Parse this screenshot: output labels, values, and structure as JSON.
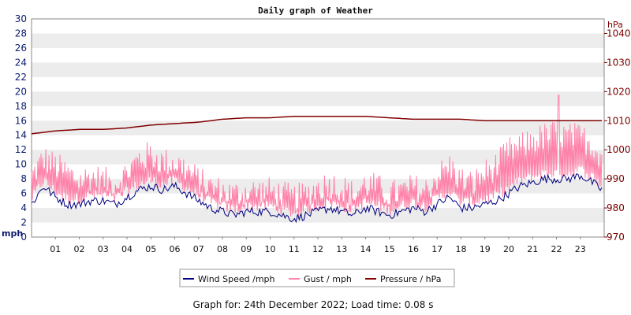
{
  "chart_data": {
    "type": "line",
    "title": "Daily graph of Weather",
    "ylabel_left": "mph",
    "ylabel_right": "hPa",
    "ylim_left": [
      0,
      30
    ],
    "ylim_right": [
      970,
      1045
    ],
    "y_ticks_left": [
      0,
      2,
      4,
      6,
      8,
      10,
      12,
      14,
      16,
      18,
      20,
      22,
      24,
      26,
      28,
      30
    ],
    "y_ticks_right": [
      970,
      980,
      990,
      1000,
      1010,
      1020,
      1030,
      1040
    ],
    "x_ticks": [
      "01",
      "02",
      "03",
      "04",
      "05",
      "06",
      "07",
      "08",
      "09",
      "10",
      "11",
      "12",
      "13",
      "14",
      "15",
      "16",
      "17",
      "18",
      "19",
      "20",
      "21",
      "22",
      "23"
    ],
    "xlim_hours": [
      0,
      24
    ],
    "grid": "horizontal bands",
    "legend_position": "bottom-center",
    "series": [
      {
        "name": "Wind Speed /mph",
        "axis": "left",
        "color": "#000080",
        "x_hours": [
          0,
          0.5,
          1,
          1.5,
          2,
          2.5,
          3,
          3.5,
          4,
          4.5,
          5,
          5.5,
          6,
          6.5,
          7,
          7.5,
          8,
          8.5,
          9,
          9.5,
          10,
          10.5,
          11,
          11.5,
          12,
          12.5,
          13,
          13.5,
          14,
          14.5,
          15,
          15.5,
          16,
          16.5,
          17,
          17.5,
          18,
          18.5,
          19,
          19.5,
          20,
          20.5,
          21,
          21.5,
          22,
          22.5,
          23,
          23.5,
          23.9
        ],
        "values": [
          4.5,
          7,
          5.5,
          4.5,
          4.5,
          5,
          5,
          4.5,
          5.5,
          6.5,
          7,
          6.5,
          7,
          6,
          5,
          4,
          3.5,
          3,
          3.5,
          3.5,
          3.5,
          3,
          2.5,
          3,
          3.5,
          4,
          3.5,
          3,
          4,
          3.5,
          3,
          3.5,
          4,
          3.5,
          4.5,
          5.5,
          4,
          4,
          4.5,
          5,
          6,
          7,
          7.5,
          8,
          8,
          8,
          8.5,
          7.5,
          6.5
        ]
      },
      {
        "name": "Gust / mph",
        "axis": "left",
        "color": "#ff80a8",
        "x_hours": [
          0,
          0.5,
          1,
          1.5,
          2,
          2.5,
          3,
          3.5,
          4,
          4.5,
          5,
          5.5,
          6,
          6.5,
          7,
          7.5,
          8,
          8.5,
          9,
          9.5,
          10,
          10.5,
          11,
          11.5,
          12,
          12.5,
          13,
          13.5,
          14,
          14.5,
          15,
          15.5,
          16,
          16.5,
          17,
          17.5,
          18,
          18.5,
          19,
          19.5,
          20,
          20.5,
          21,
          21.5,
          22,
          22.5,
          23,
          23.5,
          23.9
        ],
        "values": [
          7.5,
          10,
          9,
          8,
          7,
          7.5,
          7,
          6.5,
          8,
          10,
          10.5,
          9.5,
          9.5,
          8.5,
          7,
          6,
          5.5,
          5,
          5.5,
          5.5,
          5.5,
          5,
          4.5,
          5,
          6,
          6.5,
          6,
          5,
          6.5,
          6,
          5,
          5.5,
          6,
          5.5,
          7.5,
          9,
          7,
          6.5,
          8,
          9,
          11,
          11.5,
          12.5,
          13,
          13.5,
          13,
          13,
          12,
          10.5
        ],
        "peak_gust": 19.5
      },
      {
        "name": "Pressure / hPa",
        "axis": "right",
        "color": "#800000",
        "x_hours": [
          0,
          1,
          2,
          3,
          4,
          5,
          6,
          7,
          8,
          9,
          10,
          11,
          12,
          13,
          14,
          15,
          16,
          17,
          18,
          19,
          20,
          21,
          22,
          23,
          23.9
        ],
        "values": [
          1005.5,
          1006.5,
          1007,
          1007,
          1007.5,
          1008.5,
          1009,
          1009.5,
          1010.5,
          1011,
          1011,
          1011.5,
          1011.5,
          1011.5,
          1011.5,
          1011,
          1010.5,
          1010.5,
          1010.5,
          1010,
          1010,
          1010,
          1010,
          1010,
          1010
        ]
      }
    ]
  },
  "footer": "Graph for: 24th December 2022; Load time: 0.08 s"
}
